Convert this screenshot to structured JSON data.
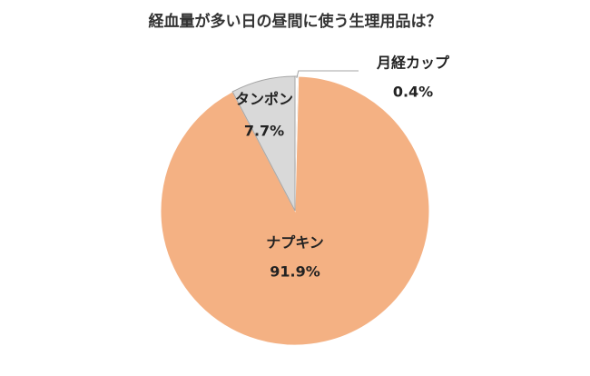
{
  "chart_data": {
    "type": "pie",
    "title": "経血量が多い日の昼間に使う生理用品は？",
    "categories": [
      "月経カップ",
      "ナプキン",
      "タンポン"
    ],
    "values": [
      0.4,
      91.9,
      7.7
    ],
    "value_labels": [
      "0.4%",
      "91.9%",
      "7.7%"
    ],
    "colors": [
      "#ffffff",
      "#f4b183",
      "#d9d9d9"
    ]
  }
}
